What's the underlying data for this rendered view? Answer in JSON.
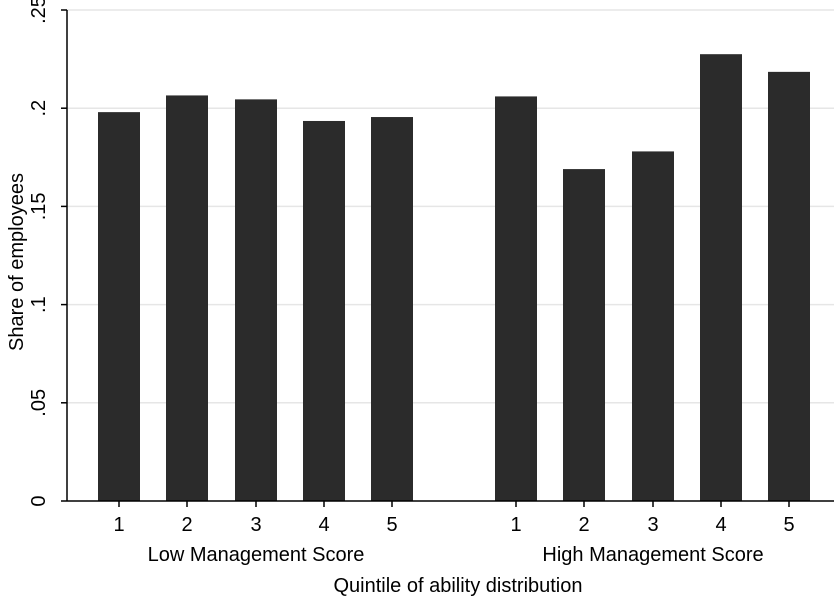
{
  "chart_data": {
    "type": "bar",
    "title": "",
    "xlabel": "Quintile of ability distribution",
    "ylabel": "Share of employees",
    "ylim": [
      0,
      0.25
    ],
    "yticks": [
      0,
      0.05,
      0.1,
      0.15,
      0.2,
      0.25
    ],
    "ytick_labels": [
      "0",
      ".05",
      ".1",
      ".15",
      ".2",
      ".25"
    ],
    "grid": true,
    "bar_color": "#2b2b2b",
    "grid_color": "#e6e6e6",
    "groups": [
      {
        "name": "Low Management Score",
        "categories": [
          "1",
          "2",
          "3",
          "4",
          "5"
        ],
        "values": [
          0.198,
          0.2065,
          0.2045,
          0.1935,
          0.1955
        ]
      },
      {
        "name": "High Management Score",
        "categories": [
          "1",
          "2",
          "3",
          "4",
          "5"
        ],
        "values": [
          0.206,
          0.169,
          0.178,
          0.2275,
          0.2185
        ]
      }
    ]
  }
}
